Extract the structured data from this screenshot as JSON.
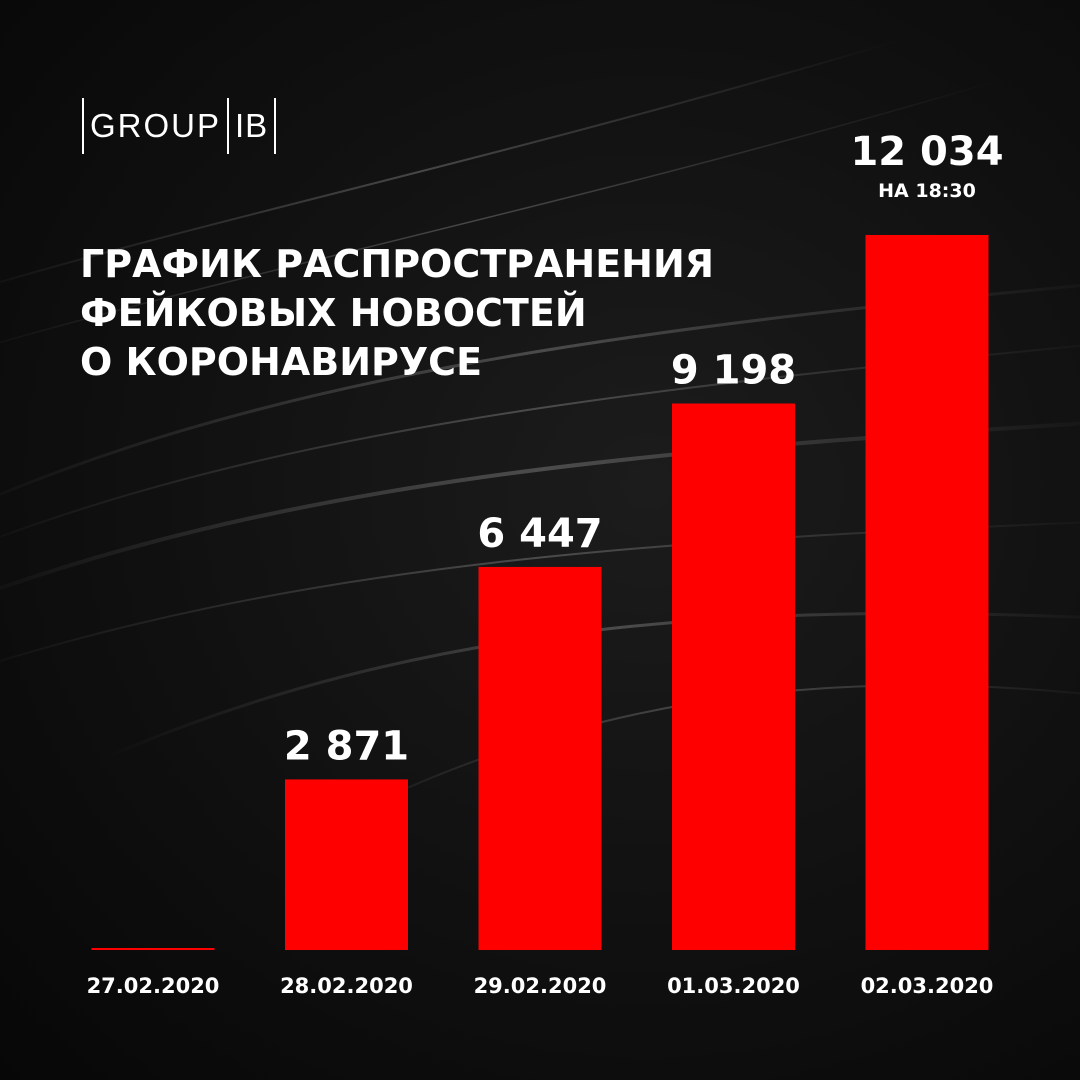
{
  "logo": {
    "left_text": "GROUP",
    "right_text": "IB"
  },
  "title_lines": [
    "ГРАФИК РАСПРОСТРАНЕНИЯ",
    "ФЕЙКОВЫХ НОВОСТЕЙ",
    "О КОРОНАВИРУСЕ"
  ],
  "colors": {
    "background": "#0a0a0a",
    "bar": "#ff0000",
    "text": "#ffffff"
  },
  "chart_data": {
    "type": "bar",
    "title": "ГРАФИК РАСПРОСТРАНЕНИЯ ФЕЙКОВЫХ НОВОСТЕЙ О КОРОНАВИРУСЕ",
    "xlabel": "",
    "ylabel": "",
    "grid": false,
    "legend": "none",
    "categories": [
      "27.02.2020",
      "28.02.2020",
      "29.02.2020",
      "01.03.2020",
      "02.03.2020"
    ],
    "values": [
      0,
      2871,
      6447,
      9198,
      12034
    ],
    "value_labels": [
      "",
      "2 871",
      "6 447",
      "9 198",
      "12 034"
    ],
    "notes": [
      "",
      "",
      "",
      "",
      "НА 18:30"
    ],
    "ylim": [
      0,
      12034
    ]
  }
}
